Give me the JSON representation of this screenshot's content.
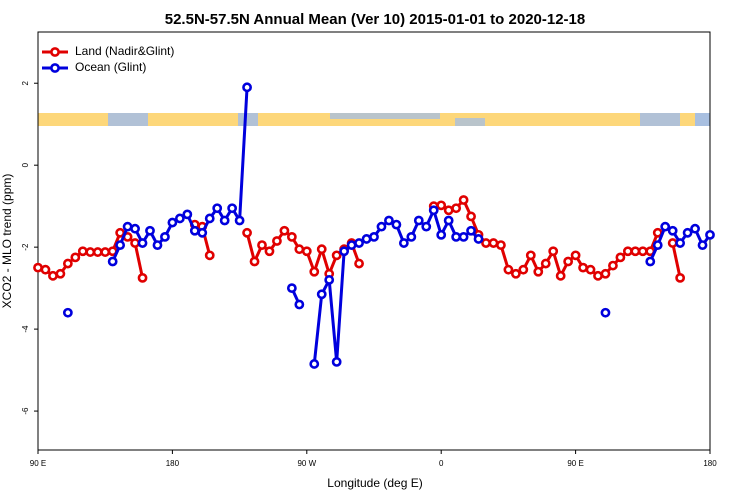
{
  "chart_data": {
    "type": "line",
    "title": "52.5N-57.5N Annual Mean (Ver 10)   2015-01-01 to 2020-12-18",
    "xlabel": "Longitude (deg E)",
    "ylabel": "XCO2 - MLO trend (ppm)",
    "x": [
      90,
      95,
      100,
      105,
      110,
      115,
      120,
      125,
      130,
      135,
      140,
      145,
      150,
      155,
      160,
      165,
      170,
      175,
      180,
      185,
      190,
      195,
      200,
      205,
      210,
      215,
      220,
      225,
      230,
      235,
      240,
      245,
      250,
      255,
      260,
      265,
      270,
      275,
      280,
      285,
      290,
      295,
      300,
      305,
      310,
      315,
      320,
      325,
      330,
      335,
      340,
      345,
      350,
      355,
      360,
      365,
      370,
      375,
      380,
      385,
      390,
      395,
      400,
      405,
      410,
      415,
      420,
      425,
      430,
      435,
      440,
      445,
      450,
      455,
      460,
      465,
      470,
      475,
      480,
      485,
      490,
      495,
      500,
      505,
      510,
      515,
      520,
      525,
      530,
      535,
      540
    ],
    "series": [
      {
        "name": "Land (Nadir&Glint)",
        "color": "#e00000",
        "values": [
          -2.5,
          -2.55,
          -2.7,
          -2.65,
          -2.4,
          -2.25,
          -2.1,
          -2.12,
          -2.12,
          -2.12,
          -2.1,
          -1.65,
          -1.75,
          -1.9,
          -2.75,
          null,
          null,
          null,
          null,
          null,
          null,
          -1.45,
          -1.5,
          -2.2,
          null,
          null,
          null,
          null,
          -1.65,
          -2.35,
          -1.95,
          -2.1,
          -1.85,
          -1.6,
          -1.75,
          -2.05,
          -2.1,
          -2.6,
          -2.05,
          -2.65,
          -2.2,
          -2.05,
          -1.9,
          -2.4,
          null,
          null,
          null,
          null,
          null,
          null,
          null,
          null,
          null,
          -1.0,
          -0.98,
          -1.1,
          -1.05,
          -0.85,
          -1.25,
          -1.7,
          -1.9,
          -1.9,
          -1.95,
          -2.55,
          -2.65,
          -2.55,
          -2.2,
          -2.6,
          -2.4,
          -2.1,
          -2.7,
          -2.35,
          -2.2,
          -2.5,
          -2.55,
          -2.7,
          -2.65,
          -2.45,
          -2.25,
          -2.1,
          -2.1,
          -2.1,
          -2.1,
          -1.65,
          null,
          -1.9,
          -2.75,
          null,
          null,
          null,
          null
        ]
      },
      {
        "name": "Ocean (Glint)",
        "color": "#0000dd",
        "values": [
          null,
          null,
          null,
          null,
          -3.6,
          null,
          null,
          null,
          null,
          null,
          -2.35,
          -1.95,
          -1.5,
          -1.55,
          -1.9,
          -1.6,
          -1.95,
          -1.75,
          -1.4,
          -1.3,
          -1.2,
          -1.6,
          -1.65,
          -1.3,
          -1.05,
          -1.35,
          -1.05,
          -1.35,
          1.9,
          null,
          null,
          null,
          null,
          null,
          -3.0,
          -3.4,
          null,
          -4.85,
          -3.15,
          -2.8,
          -4.8,
          -2.1,
          -1.95,
          -1.9,
          -1.8,
          -1.75,
          -1.5,
          -1.35,
          -1.45,
          -1.9,
          -1.75,
          -1.35,
          -1.5,
          -1.1,
          -1.7,
          -1.35,
          -1.75,
          -1.75,
          -1.6,
          -1.8,
          null,
          null,
          null,
          null,
          null,
          null,
          null,
          null,
          null,
          null,
          null,
          null,
          null,
          null,
          null,
          null,
          -3.6,
          null,
          null,
          null,
          null,
          null,
          -2.35,
          -1.95,
          -1.5,
          -1.6,
          -1.9,
          -1.65,
          -1.55,
          -1.95,
          -1.7
        ]
      }
    ],
    "xlim": [
      90,
      540
    ],
    "xticks": [
      {
        "value": 90,
        "label": "90 E"
      },
      180,
      {
        "value": 270,
        "label": "90 W"
      },
      {
        "value": 360,
        "label": "0"
      },
      {
        "value": 450,
        "label": "90 E"
      },
      {
        "value": 540,
        "label": "180"
      }
    ],
    "ylim": [
      -6.95,
      3.25
    ],
    "yticks": [
      -6,
      -4,
      -2,
      0,
      2
    ],
    "legend": "top-left"
  }
}
